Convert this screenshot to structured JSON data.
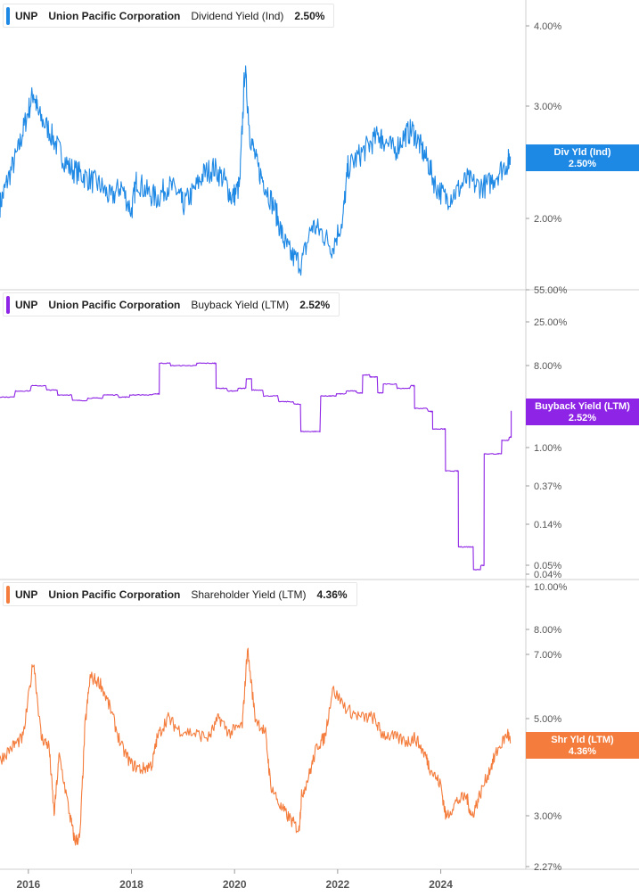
{
  "panels": [
    {
      "ticker": "UNP",
      "company": "Union Pacific Corporation",
      "metric": "Dividend Yield (Ind)",
      "current": "2.50%",
      "badge_label": "Div Yld (Ind)",
      "badge_value": "2.50%",
      "color": "#1e88e5"
    },
    {
      "ticker": "UNP",
      "company": "Union Pacific Corporation",
      "metric": "Buyback Yield (LTM)",
      "current": "2.52%",
      "badge_label": "Buyback Yield (LTM)",
      "badge_value": "2.52%",
      "color": "#8e24e5"
    },
    {
      "ticker": "UNP",
      "company": "Union Pacific Corporation",
      "metric": "Shareholder Yield (LTM)",
      "current": "4.36%",
      "badge_label": "Shr Yld (LTM)",
      "badge_value": "4.36%",
      "color": "#f47c3c"
    }
  ],
  "chart_data": [
    {
      "type": "line",
      "title": "UNP Union Pacific Corporation Dividend Yield (Ind) 2.50%",
      "series": [
        {
          "name": "Dividend Yield (Ind)",
          "color": "#1e88e5",
          "x": [
            2015.45,
            2015.6,
            2015.8,
            2015.95,
            2016.1,
            2016.2,
            2016.4,
            2016.6,
            2016.8,
            2017.0,
            2017.2,
            2017.4,
            2017.6,
            2017.8,
            2018.0,
            2018.1,
            2018.3,
            2018.5,
            2018.7,
            2018.9,
            2019.0,
            2019.2,
            2019.4,
            2019.6,
            2019.8,
            2019.95,
            2020.1,
            2020.2,
            2020.3,
            2020.45,
            2020.6,
            2020.8,
            2020.95,
            2021.1,
            2021.3,
            2021.5,
            2021.7,
            2021.9,
            2022.1,
            2022.2,
            2022.4,
            2022.6,
            2022.8,
            2022.9,
            2023.1,
            2023.3,
            2023.45,
            2023.6,
            2023.75,
            2023.9,
            2024.1,
            2024.3,
            2024.5,
            2024.7,
            2024.9,
            2025.1,
            2025.3,
            2025.35
          ],
          "y": [
            2.1,
            2.3,
            2.55,
            2.85,
            3.15,
            2.9,
            2.75,
            2.55,
            2.4,
            2.35,
            2.3,
            2.25,
            2.15,
            2.25,
            2.05,
            2.3,
            2.2,
            2.15,
            2.25,
            2.2,
            2.1,
            2.2,
            2.35,
            2.4,
            2.3,
            2.15,
            2.25,
            3.45,
            2.7,
            2.4,
            2.25,
            2.05,
            1.85,
            1.75,
            1.7,
            1.95,
            1.9,
            1.8,
            2.0,
            2.4,
            2.5,
            2.6,
            2.7,
            2.65,
            2.55,
            2.7,
            2.75,
            2.6,
            2.45,
            2.25,
            2.15,
            2.2,
            2.3,
            2.25,
            2.25,
            2.35,
            2.45,
            2.5
          ]
        }
      ],
      "y_ticks": [
        "4.00%",
        "3.00%",
        "2.00%"
      ],
      "y_scale": "log",
      "ylim": [
        1.55,
        4.35
      ]
    },
    {
      "type": "line",
      "title": "UNP Union Pacific Corporation Buyback Yield (LTM) 2.52%",
      "series": [
        {
          "name": "Buyback Yield (LTM)",
          "color": "#8e24e5",
          "x": [
            2015.45,
            2015.8,
            2016.1,
            2016.4,
            2016.6,
            2016.9,
            2017.2,
            2017.5,
            2017.8,
            2018.0,
            2018.5,
            2018.55,
            2018.8,
            2019.1,
            2019.3,
            2019.6,
            2019.65,
            2019.9,
            2020.1,
            2020.25,
            2020.35,
            2020.6,
            2020.9,
            2021.2,
            2021.3,
            2021.5,
            2021.7,
            2021.85,
            2022.0,
            2022.2,
            2022.4,
            2022.5,
            2022.65,
            2022.8,
            2022.9,
            2023.2,
            2023.45,
            2023.5,
            2023.8,
            2023.85,
            2024.05,
            2024.1,
            2024.3,
            2024.35,
            2024.55,
            2024.65,
            2024.8,
            2024.85,
            2025.1,
            2025.2,
            2025.35,
            2025.37
          ],
          "y": [
            3.6,
            4.2,
            4.8,
            4.3,
            3.8,
            3.3,
            3.5,
            3.8,
            3.6,
            3.8,
            3.9,
            8.5,
            8.0,
            8.0,
            8.5,
            8.5,
            4.5,
            4.2,
            4.5,
            5.7,
            4.3,
            3.7,
            3.2,
            3.0,
            1.5,
            1.5,
            3.7,
            3.7,
            3.9,
            4.2,
            4.0,
            6.3,
            6.0,
            4.0,
            5.0,
            4.5,
            4.8,
            2.7,
            2.5,
            1.6,
            1.6,
            0.55,
            0.55,
            0.08,
            0.08,
            0.045,
            0.05,
            0.85,
            0.85,
            1.2,
            1.3,
            2.52
          ]
        }
      ],
      "y_ticks": [
        "55.00%",
        "25.00%",
        "8.00%",
        "1.00%",
        "0.37%",
        "0.14%",
        "0.05%",
        "0.04%"
      ],
      "y_scale": "log"
    },
    {
      "type": "line",
      "title": "UNP Union Pacific Corporation Shareholder Yield (LTM) 4.36%",
      "series": [
        {
          "name": "Shareholder Yield (LTM)",
          "color": "#f47c3c",
          "x": [
            2015.45,
            2015.7,
            2015.9,
            2016.1,
            2016.25,
            2016.4,
            2016.5,
            2016.6,
            2016.8,
            2016.9,
            2017.0,
            2017.1,
            2017.2,
            2017.4,
            2017.6,
            2017.8,
            2018.0,
            2018.2,
            2018.4,
            2018.5,
            2018.7,
            2018.9,
            2019.2,
            2019.5,
            2019.7,
            2019.9,
            2020.15,
            2020.25,
            2020.4,
            2020.6,
            2020.7,
            2020.9,
            2021.1,
            2021.25,
            2021.3,
            2021.45,
            2021.6,
            2021.75,
            2021.9,
            2022.2,
            2022.45,
            2022.7,
            2022.85,
            2023.1,
            2023.35,
            2023.5,
            2023.7,
            2023.8,
            2024.0,
            2024.1,
            2024.3,
            2024.5,
            2024.6,
            2024.75,
            2024.95,
            2025.1,
            2025.3,
            2025.35
          ],
          "y": [
            4.0,
            4.3,
            4.5,
            6.8,
            4.5,
            4.3,
            3.0,
            4.1,
            3.0,
            2.6,
            2.65,
            4.8,
            6.2,
            6.0,
            5.2,
            4.3,
            3.9,
            3.8,
            3.9,
            4.5,
            5.0,
            4.7,
            4.6,
            4.5,
            5.0,
            4.6,
            4.8,
            7.2,
            5.0,
            4.6,
            3.5,
            3.1,
            2.9,
            2.75,
            3.3,
            3.7,
            4.3,
            4.5,
            5.8,
            5.2,
            5.0,
            5.0,
            4.6,
            4.5,
            4.4,
            4.5,
            4.1,
            3.8,
            3.5,
            2.95,
            3.2,
            3.3,
            2.95,
            3.3,
            3.8,
            4.2,
            4.6,
            4.36
          ]
        }
      ],
      "y_ticks": [
        "10.00%",
        "8.00%",
        "7.00%",
        "5.00%",
        "3.00%",
        "2.27%"
      ],
      "y_scale": "log"
    }
  ],
  "x_axis": {
    "ticks": [
      "2016",
      "2018",
      "2020",
      "2022",
      "2024"
    ],
    "values": [
      2016,
      2018,
      2020,
      2022,
      2024
    ],
    "range": [
      2015.45,
      2025.65
    ]
  }
}
